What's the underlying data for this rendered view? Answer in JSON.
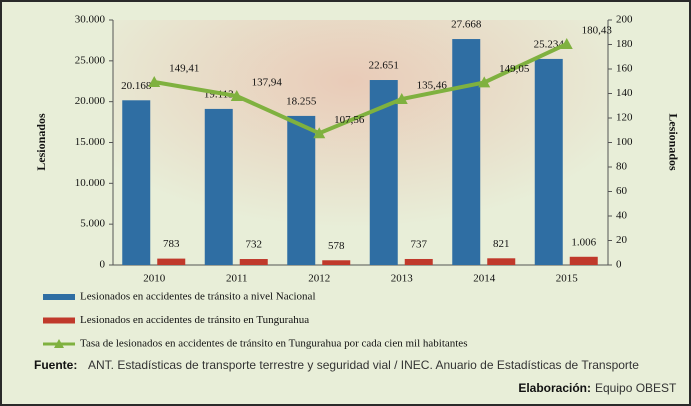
{
  "chart_data": {
    "type": "bar-line",
    "categories": [
      "2010",
      "2011",
      "2012",
      "2013",
      "2014",
      "2015"
    ],
    "series": [
      {
        "name": "Lesionados en accidentes de tránsito a nivel Nacional",
        "color": "#2f6ea3",
        "type": "bar",
        "values": [
          20168,
          19113,
          18255,
          22651,
          27668,
          25234
        ],
        "value_labels": [
          "20.168",
          "19.113",
          "18.255",
          "22.651",
          "27.668",
          "25.234"
        ]
      },
      {
        "name": "Lesionados en accidentes de tránsito en Tungurahua",
        "color": "#c0392b",
        "type": "bar",
        "values": [
          783,
          732,
          578,
          737,
          821,
          1006
        ],
        "value_labels": [
          "783",
          "732",
          "578",
          "737",
          "821",
          "1.006"
        ]
      },
      {
        "name": "Tasa de lesionados en accidentes de tránsito en Tungurahua por cada cien mil habitantes",
        "color": "#7fb13f",
        "type": "line",
        "axis": "y2",
        "values": [
          149.41,
          137.94,
          107.56,
          135.46,
          149.05,
          180.43
        ],
        "value_labels": [
          "149,41",
          "137,94",
          "107,56",
          "135,46",
          "149,05",
          "180,43"
        ]
      }
    ],
    "ylabel": "Lesionados",
    "y2label": "Lesionados",
    "ylim": [
      0,
      30000
    ],
    "yticks": [
      0,
      {
        "value": 5000,
        "label": "5.000"
      },
      {
        "value": 10000,
        "label": "10.000"
      },
      {
        "value": 15000,
        "label": "15.000"
      },
      {
        "value": 20000,
        "label": "20.000"
      },
      {
        "value": 25000,
        "label": "25.000"
      },
      {
        "value": 30000,
        "label": "30.000"
      }
    ],
    "y2lim": [
      0,
      200
    ],
    "y2ticks": [
      0,
      20,
      40,
      60,
      80,
      100,
      120,
      140,
      160,
      180,
      200
    ],
    "legend": "bottom",
    "source_label": "Fuente:",
    "source": "ANT. Estadísticas de transporte terrestre y seguridad vial / INEC. Anuario de Estadísticas de Transporte",
    "credit_label": "Elaboración:",
    "credit": "Equipo OBEST"
  }
}
